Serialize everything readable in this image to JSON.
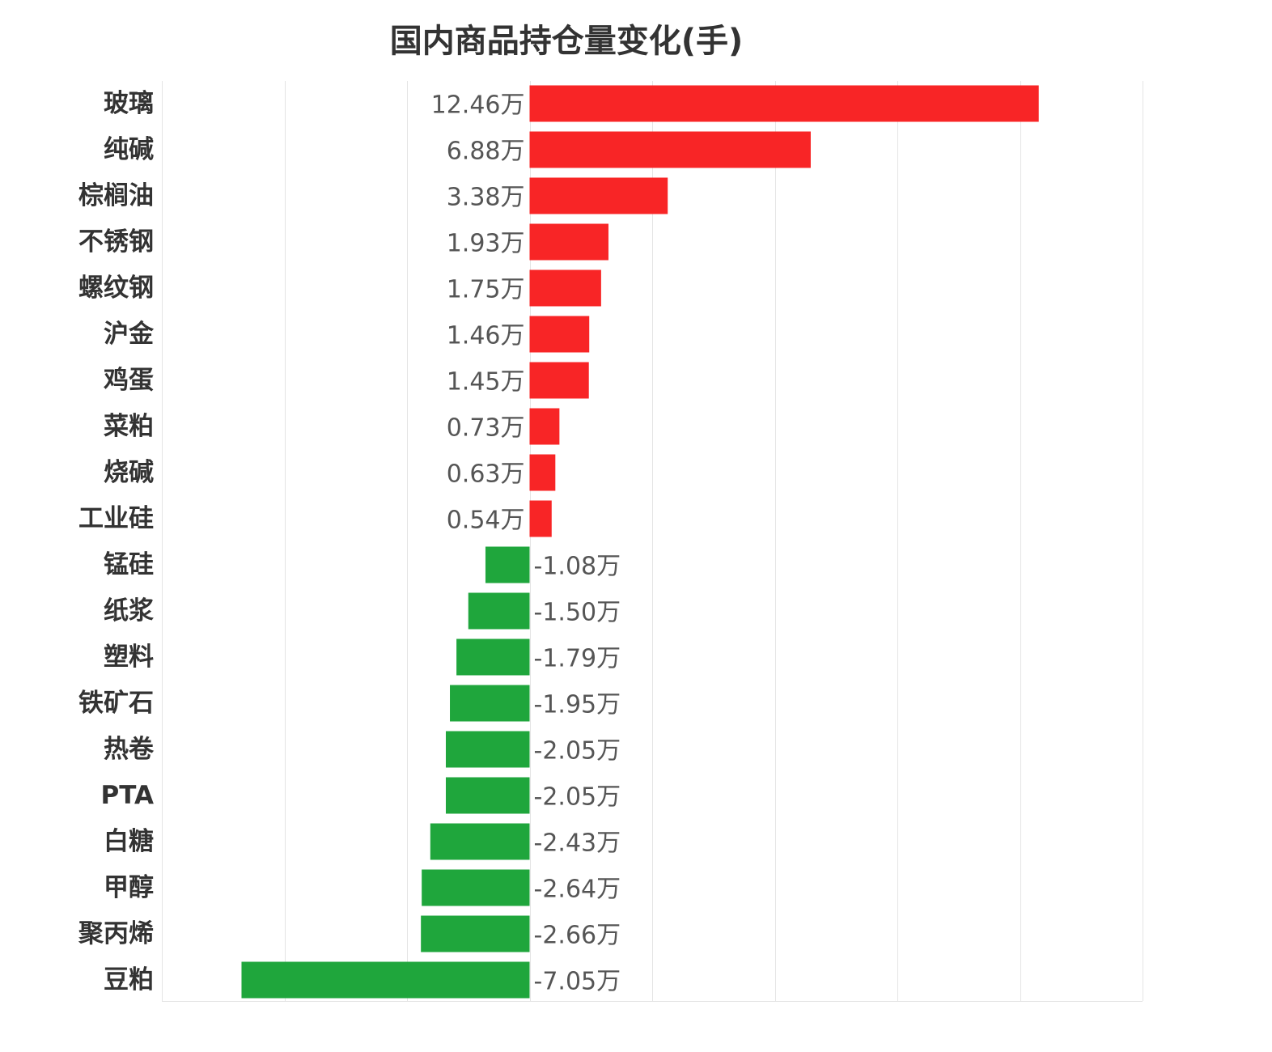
{
  "chart_data": {
    "type": "bar",
    "orientation": "horizontal",
    "title": "国内商品持仓量变化(手)",
    "unit_suffix": "万",
    "categories": [
      "玻璃",
      "纯碱",
      "棕榈油",
      "不锈钢",
      "螺纹钢",
      "沪金",
      "鸡蛋",
      "菜粕",
      "烧碱",
      "工业硅",
      "锰硅",
      "纸浆",
      "塑料",
      "铁矿石",
      "热卷",
      "PTA",
      "白糖",
      "甲醇",
      "聚丙烯",
      "豆粕"
    ],
    "values": [
      12.46,
      6.88,
      3.38,
      1.93,
      1.75,
      1.46,
      1.45,
      0.73,
      0.63,
      0.54,
      -1.08,
      -1.5,
      -1.79,
      -1.95,
      -2.05,
      -2.05,
      -2.43,
      -2.64,
      -2.66,
      -7.05
    ],
    "value_labels": [
      "12.46万",
      "6.88万",
      "3.38万",
      "1.93万",
      "1.75万",
      "1.46万",
      "1.45万",
      "0.73万",
      "0.63万",
      "0.54万",
      "-1.08万",
      "-1.50万",
      "-1.79万",
      "-1.95万",
      "-2.05万",
      "-2.05万",
      "-2.43万",
      "-2.64万",
      "-2.66万",
      "-7.05万"
    ],
    "xlim": [
      -9,
      15
    ],
    "grid": true,
    "colors": {
      "positive": "#f82526",
      "negative": "#1fa63c",
      "grid": "#e4e4e4"
    }
  }
}
